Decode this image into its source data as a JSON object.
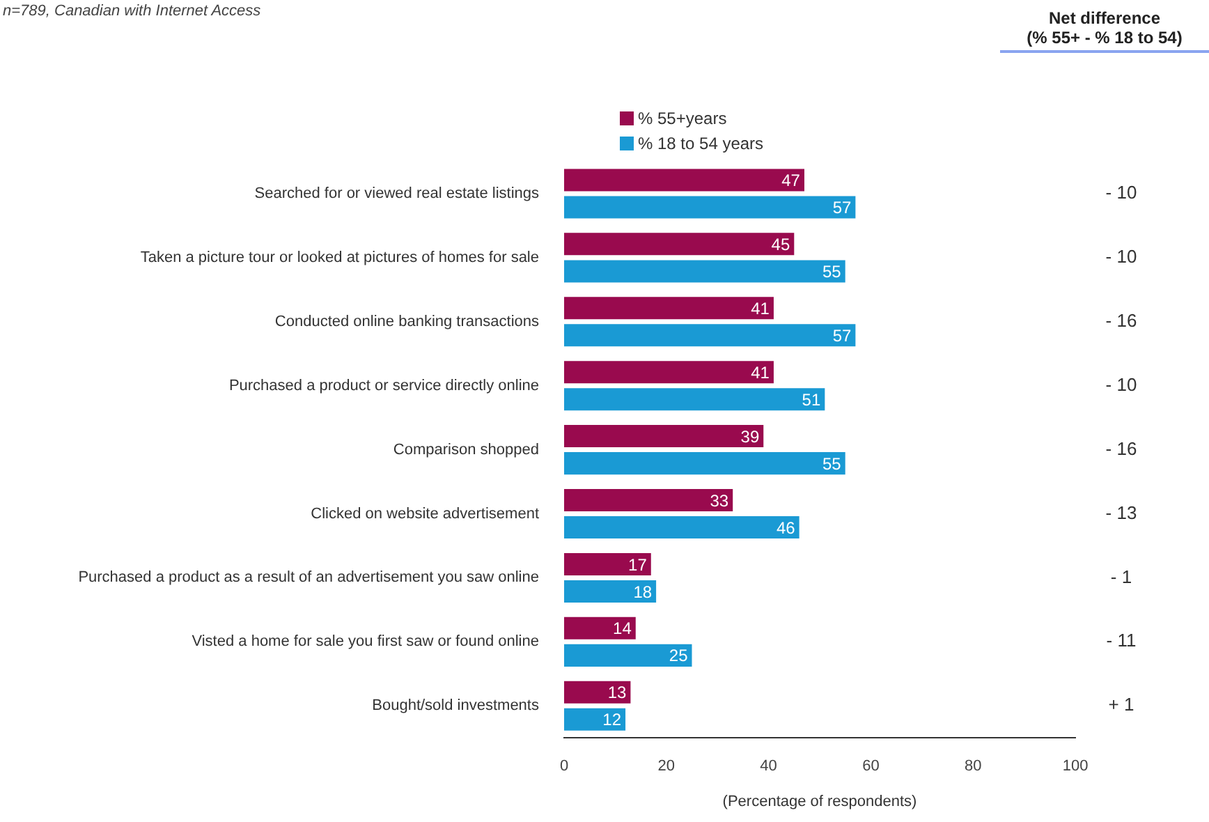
{
  "chart_data": {
    "type": "bar",
    "orientation": "horizontal",
    "subtitle": "n=789, Canadian with Internet Access",
    "xlabel": "(Percentage of respondents)",
    "categories": [
      "Searched for or viewed real estate listings",
      "Taken a picture tour or looked at pictures of homes for sale",
      "Conducted online banking transactions",
      "Purchased a product or service directly online",
      "Comparison shopped",
      "Clicked on website advertisement",
      "Purchased a product as a result of an advertisement you saw online",
      "Visted a home for sale you first saw or found online",
      "Bought/sold investments"
    ],
    "series": [
      {
        "name": "% 55+years",
        "color": "#990a4e",
        "values": [
          47,
          45,
          41,
          41,
          39,
          33,
          17,
          14,
          13
        ]
      },
      {
        "name": "% 18 to 54 years",
        "color": "#1a9ad4",
        "values": [
          57,
          55,
          57,
          51,
          55,
          46,
          18,
          25,
          12
        ]
      }
    ],
    "xlim": [
      0,
      100
    ],
    "xticks": [
      0,
      20,
      40,
      60,
      80,
      100
    ],
    "grid": false,
    "legend": "top",
    "data_labels": true,
    "annotations": [
      "Net difference\n(% 55+ - % 18 to 54)",
      "- 10",
      "- 10",
      "- 16",
      "- 10",
      "- 16",
      "- 13",
      "- 1",
      "- 11",
      "+ 1"
    ]
  }
}
